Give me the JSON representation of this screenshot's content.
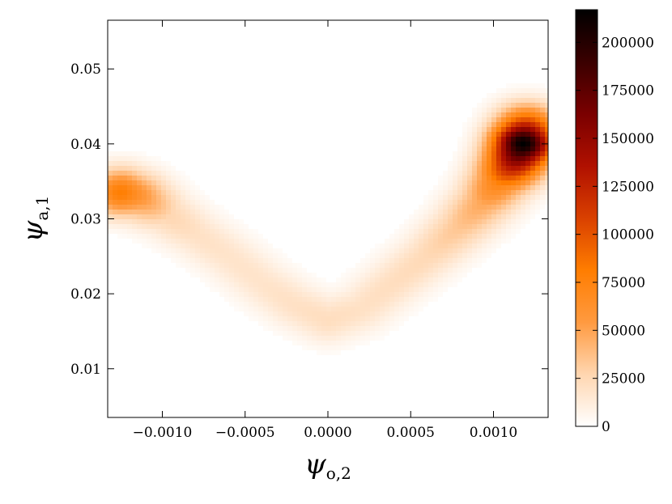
{
  "chart_data": {
    "type": "heatmap",
    "title": "",
    "xlabel": {
      "symbol": "ψ",
      "subscript": "o,2"
    },
    "ylabel": {
      "symbol": "ψ",
      "subscript": "a,1"
    },
    "xlim": [
      -0.00133,
      0.00133
    ],
    "ylim": [
      0.0035,
      0.0565
    ],
    "x_ticks": [
      {
        "value": -0.001,
        "label": "−0.0010"
      },
      {
        "value": -0.0005,
        "label": "−0.0005"
      },
      {
        "value": 0.0,
        "label": "0.0000"
      },
      {
        "value": 0.0005,
        "label": "0.0005"
      },
      {
        "value": 0.001,
        "label": "0.0010"
      }
    ],
    "y_ticks": [
      {
        "value": 0.01,
        "label": "0.01"
      },
      {
        "value": 0.02,
        "label": "0.02"
      },
      {
        "value": 0.03,
        "label": "0.03"
      },
      {
        "value": 0.04,
        "label": "0.04"
      },
      {
        "value": 0.05,
        "label": "0.05"
      }
    ],
    "colorbar": {
      "min": 0,
      "max": 217000,
      "ticks": [
        {
          "value": 0,
          "label": "0"
        },
        {
          "value": 25000,
          "label": "25000"
        },
        {
          "value": 50000,
          "label": "50000"
        },
        {
          "value": 75000,
          "label": "75000"
        },
        {
          "value": 100000,
          "label": "100000"
        },
        {
          "value": 125000,
          "label": "125000"
        },
        {
          "value": 150000,
          "label": "150000"
        },
        {
          "value": 175000,
          "label": "175000"
        },
        {
          "value": 200000,
          "label": "200000"
        }
      ],
      "colors": [
        "#ffffff",
        "#ffd6b0",
        "#ff9a40",
        "#ff7d00",
        "#d94000",
        "#b01000",
        "#7a0000",
        "#3a0000",
        "#000000"
      ]
    },
    "density_ridge": {
      "points": [
        {
          "x": -0.00125,
          "y": 0.0335,
          "density": 80000
        },
        {
          "x": -0.00115,
          "y": 0.033,
          "density": 60000
        },
        {
          "x": -0.001,
          "y": 0.031,
          "density": 28000
        },
        {
          "x": -0.0008,
          "y": 0.028,
          "density": 20000
        },
        {
          "x": -0.0006,
          "y": 0.025,
          "density": 18000
        },
        {
          "x": -0.0004,
          "y": 0.0215,
          "density": 18000
        },
        {
          "x": -0.0002,
          "y": 0.0185,
          "density": 20000
        },
        {
          "x": 0.0,
          "y": 0.0165,
          "density": 22000
        },
        {
          "x": 0.0002,
          "y": 0.018,
          "density": 20000
        },
        {
          "x": 0.0004,
          "y": 0.0215,
          "density": 22000
        },
        {
          "x": 0.0006,
          "y": 0.025,
          "density": 25000
        },
        {
          "x": 0.0008,
          "y": 0.029,
          "density": 35000
        },
        {
          "x": 0.00095,
          "y": 0.0325,
          "density": 50000
        },
        {
          "x": 0.00105,
          "y": 0.0355,
          "density": 80000
        },
        {
          "x": 0.00112,
          "y": 0.0375,
          "density": 140000
        },
        {
          "x": 0.00118,
          "y": 0.04,
          "density": 217000
        },
        {
          "x": 0.0012,
          "y": 0.042,
          "density": 110000
        }
      ],
      "x_sigma": 4e-05,
      "y_sigma": 0.0022
    }
  }
}
